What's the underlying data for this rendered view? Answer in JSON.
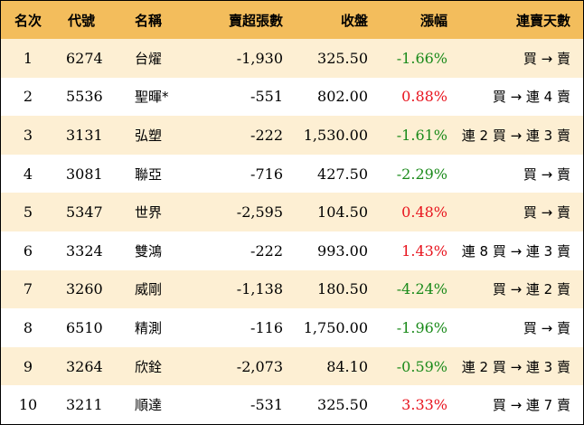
{
  "headers": {
    "rank": "名次",
    "code": "代號",
    "name": "名稱",
    "net_sell": "賣超張數",
    "close": "收盤",
    "change": "漲幅",
    "streak": "連賣天數"
  },
  "rows": [
    {
      "rank": "1",
      "code": "6274",
      "name": "台燿",
      "net_sell": "-1,930",
      "close": "325.50",
      "change": "-1.66%",
      "streak": "買 → 賣"
    },
    {
      "rank": "2",
      "code": "5536",
      "name": "聖暉*",
      "net_sell": "-551",
      "close": "802.00",
      "change": "0.88%",
      "streak": "買 → 連 4 賣"
    },
    {
      "rank": "3",
      "code": "3131",
      "name": "弘塑",
      "net_sell": "-222",
      "close": "1,530.00",
      "change": "-1.61%",
      "streak": "連 2 買 → 連 3 賣"
    },
    {
      "rank": "4",
      "code": "3081",
      "name": "聯亞",
      "net_sell": "-716",
      "close": "427.50",
      "change": "-2.29%",
      "streak": "買 → 賣"
    },
    {
      "rank": "5",
      "code": "5347",
      "name": "世界",
      "net_sell": "-2,595",
      "close": "104.50",
      "change": "0.48%",
      "streak": "買 → 賣"
    },
    {
      "rank": "6",
      "code": "3324",
      "name": "雙鴻",
      "net_sell": "-222",
      "close": "993.00",
      "change": "1.43%",
      "streak": "連 8 買 → 連 3 賣"
    },
    {
      "rank": "7",
      "code": "3260",
      "name": "威剛",
      "net_sell": "-1,138",
      "close": "180.50",
      "change": "-4.24%",
      "streak": "買 → 連 2 賣"
    },
    {
      "rank": "8",
      "code": "6510",
      "name": "精測",
      "net_sell": "-116",
      "close": "1,750.00",
      "change": "-1.96%",
      "streak": "買 → 賣"
    },
    {
      "rank": "9",
      "code": "3264",
      "name": "欣銓",
      "net_sell": "-2,073",
      "close": "84.10",
      "change": "-0.59%",
      "streak": "連 2 買 → 連 3 賣"
    },
    {
      "rank": "10",
      "code": "3211",
      "name": "順達",
      "net_sell": "-531",
      "close": "325.50",
      "change": "3.33%",
      "streak": "買 → 連 7 賣"
    }
  ],
  "colors": {
    "header_bg": "#f3bd5c",
    "stripe_bg": "#fdefd3",
    "negative": "#1a8a1a",
    "positive": "#e8141e"
  }
}
